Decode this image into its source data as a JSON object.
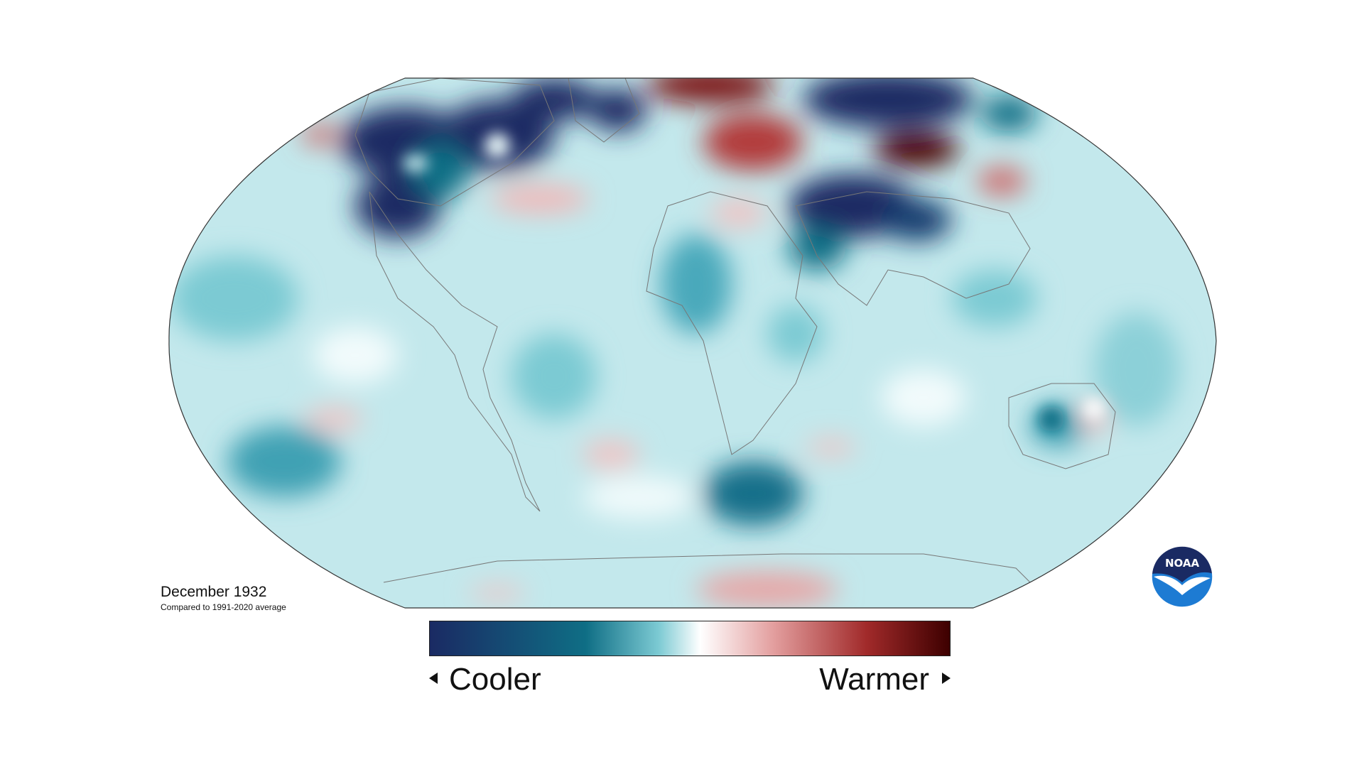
{
  "map": {
    "title": "December 1932",
    "subtitle": "Compared to 1991-2020 average",
    "projection": "Robinson",
    "colors": {
      "cold_extreme": "#1a2a63",
      "cold_strong": "#0f6e85",
      "cool": "#7ccad3",
      "cool_light": "#c6eaee",
      "neutral": "#ffffff",
      "warm_light": "#f2c3c3",
      "warm": "#cf6a6a",
      "warm_strong": "#9a1f22",
      "warm_extreme": "#3d0000",
      "coastline": "#777777",
      "frame": "#333333"
    }
  },
  "legend": {
    "low_label": "Cooler",
    "high_label": "Warmer",
    "gradient": [
      "#1a2a63",
      "#0f6e85",
      "#7ccad3",
      "#ffffff",
      "#e39f9f",
      "#a12a2a",
      "#3d0000"
    ]
  },
  "logo": {
    "text": "NOAA",
    "icon": "noaa-logo-icon",
    "color_top": "#1a2a63",
    "color_bottom": "#1d7bd3"
  }
}
